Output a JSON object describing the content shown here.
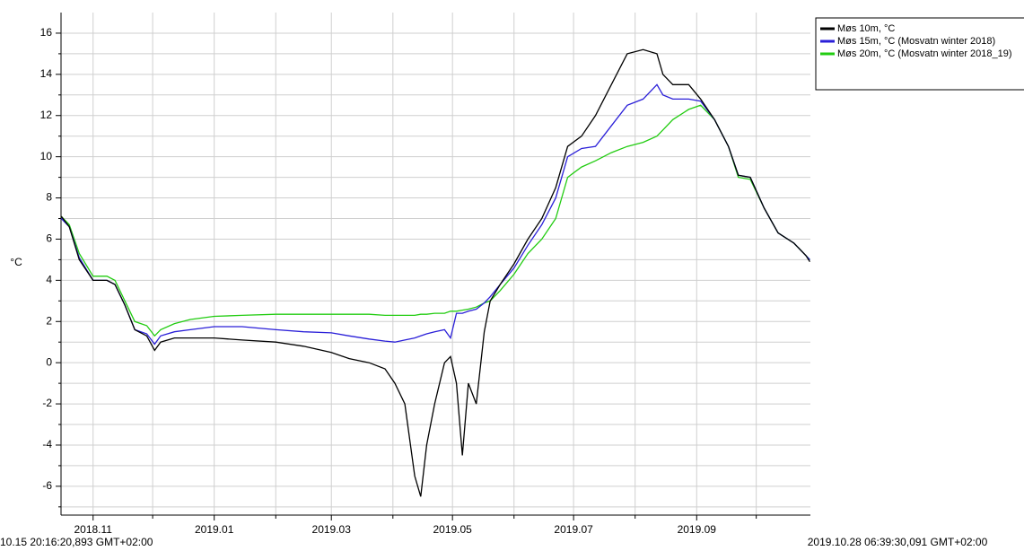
{
  "chart_data": {
    "type": "line",
    "ylabel": "°C",
    "start_label": "10.15 20:16:20,893 GMT+02:00",
    "end_label": "2019.10.28 06:39:30,091 GMT+02:00",
    "xlim": [
      "2018-10-15T20:16:20",
      "2019-10-28T06:39:30"
    ],
    "xticks": [
      {
        "value": "2018-11-01",
        "label": "2018.11"
      },
      {
        "value": "2019-01-01",
        "label": "2019.01"
      },
      {
        "value": "2019-03-01",
        "label": "2019.03"
      },
      {
        "value": "2019-05-01",
        "label": "2019.05"
      },
      {
        "value": "2019-07-01",
        "label": "2019.07"
      },
      {
        "value": "2019-09-01",
        "label": "2019.09"
      }
    ],
    "xminor_ticks": [
      "2018-12-01",
      "2019-02-01",
      "2019-04-01",
      "2019-06-01",
      "2019-08-01",
      "2019-10-01"
    ],
    "ylim": [
      -7.4,
      17
    ],
    "yticks": [
      -6,
      -4,
      -2,
      0,
      2,
      4,
      6,
      8,
      10,
      12,
      14,
      16
    ],
    "yminor_ticks": [
      -7,
      -5,
      -3,
      -1,
      1,
      3,
      5,
      7,
      9,
      11,
      13,
      15
    ],
    "grid": true,
    "legend": "outside-top-right",
    "x": [
      "2018-10-16",
      "2018-10-20",
      "2018-10-25",
      "2018-11-01",
      "2018-11-08",
      "2018-11-12",
      "2018-11-17",
      "2018-11-22",
      "2018-11-28",
      "2018-12-02",
      "2018-12-05",
      "2018-12-12",
      "2018-12-20",
      "2019-01-01",
      "2019-01-15",
      "2019-02-01",
      "2019-02-15",
      "2019-03-01",
      "2019-03-10",
      "2019-03-20",
      "2019-03-28",
      "2019-04-02",
      "2019-04-07",
      "2019-04-12",
      "2019-04-15",
      "2019-04-18",
      "2019-04-22",
      "2019-04-27",
      "2019-04-30",
      "2019-05-03",
      "2019-05-06",
      "2019-05-09",
      "2019-05-13",
      "2019-05-17",
      "2019-05-20",
      "2019-05-25",
      "2019-06-01",
      "2019-06-08",
      "2019-06-15",
      "2019-06-22",
      "2019-06-28",
      "2019-07-05",
      "2019-07-12",
      "2019-07-20",
      "2019-07-28",
      "2019-08-05",
      "2019-08-12",
      "2019-08-15",
      "2019-08-20",
      "2019-08-28",
      "2019-09-03",
      "2019-09-10",
      "2019-09-17",
      "2019-09-22",
      "2019-09-28",
      "2019-10-05",
      "2019-10-12",
      "2019-10-20",
      "2019-10-26",
      "2019-10-28"
    ],
    "series": [
      {
        "name": "Møs 10m, °C",
        "color": "#000000",
        "values": [
          7.1,
          6.6,
          5.0,
          4.0,
          4.0,
          3.8,
          2.8,
          1.6,
          1.3,
          0.6,
          1.0,
          1.2,
          1.2,
          1.2,
          1.1,
          1.0,
          0.8,
          0.5,
          0.2,
          0.0,
          -0.3,
          -1.0,
          -2.0,
          -5.5,
          -6.5,
          -4.0,
          -2.0,
          0.0,
          0.3,
          -1.0,
          -4.5,
          -1.0,
          -2.0,
          1.5,
          3.0,
          3.8,
          4.8,
          6.0,
          7.0,
          8.5,
          10.5,
          11.0,
          12.0,
          13.5,
          15.0,
          15.2,
          15.0,
          14.0,
          13.5,
          13.5,
          12.8,
          11.8,
          10.5,
          9.1,
          9.0,
          7.5,
          6.3,
          5.8,
          5.2,
          4.9
        ]
      },
      {
        "name": "Møs 15m, °C (Mosvatn winter 2018)",
        "color": "#2a1fd8",
        "values": [
          7.0,
          6.6,
          5.1,
          4.0,
          4.0,
          3.8,
          2.8,
          1.6,
          1.4,
          0.9,
          1.3,
          1.5,
          1.6,
          1.75,
          1.75,
          1.6,
          1.5,
          1.45,
          1.3,
          1.15,
          1.05,
          1.0,
          1.1,
          1.2,
          1.3,
          1.4,
          1.5,
          1.6,
          1.2,
          2.4,
          2.4,
          2.5,
          2.6,
          2.9,
          3.2,
          3.8,
          4.6,
          5.7,
          6.7,
          8.0,
          10.0,
          10.4,
          10.5,
          11.5,
          12.5,
          12.8,
          13.5,
          13.0,
          12.8,
          12.8,
          12.7,
          11.8,
          10.5,
          9.1,
          9.0,
          7.5,
          6.3,
          5.8,
          5.2,
          5.0
        ]
      },
      {
        "name": "Møs 20m, °C (Mosvatn winter 2018_19)",
        "color": "#22cc11",
        "values": [
          7.1,
          6.7,
          5.3,
          4.2,
          4.2,
          4.0,
          3.0,
          2.0,
          1.8,
          1.3,
          1.6,
          1.9,
          2.1,
          2.25,
          2.3,
          2.35,
          2.35,
          2.35,
          2.35,
          2.35,
          2.3,
          2.3,
          2.3,
          2.3,
          2.35,
          2.35,
          2.4,
          2.4,
          2.5,
          2.5,
          2.55,
          2.6,
          2.7,
          2.9,
          3.0,
          3.5,
          4.3,
          5.3,
          6.0,
          7.0,
          9.0,
          9.5,
          9.8,
          10.2,
          10.5,
          10.7,
          11.0,
          11.3,
          11.8,
          12.3,
          12.5,
          11.8,
          10.5,
          9.0,
          8.9,
          7.5,
          6.3,
          5.8,
          5.2,
          5.0
        ]
      }
    ]
  }
}
